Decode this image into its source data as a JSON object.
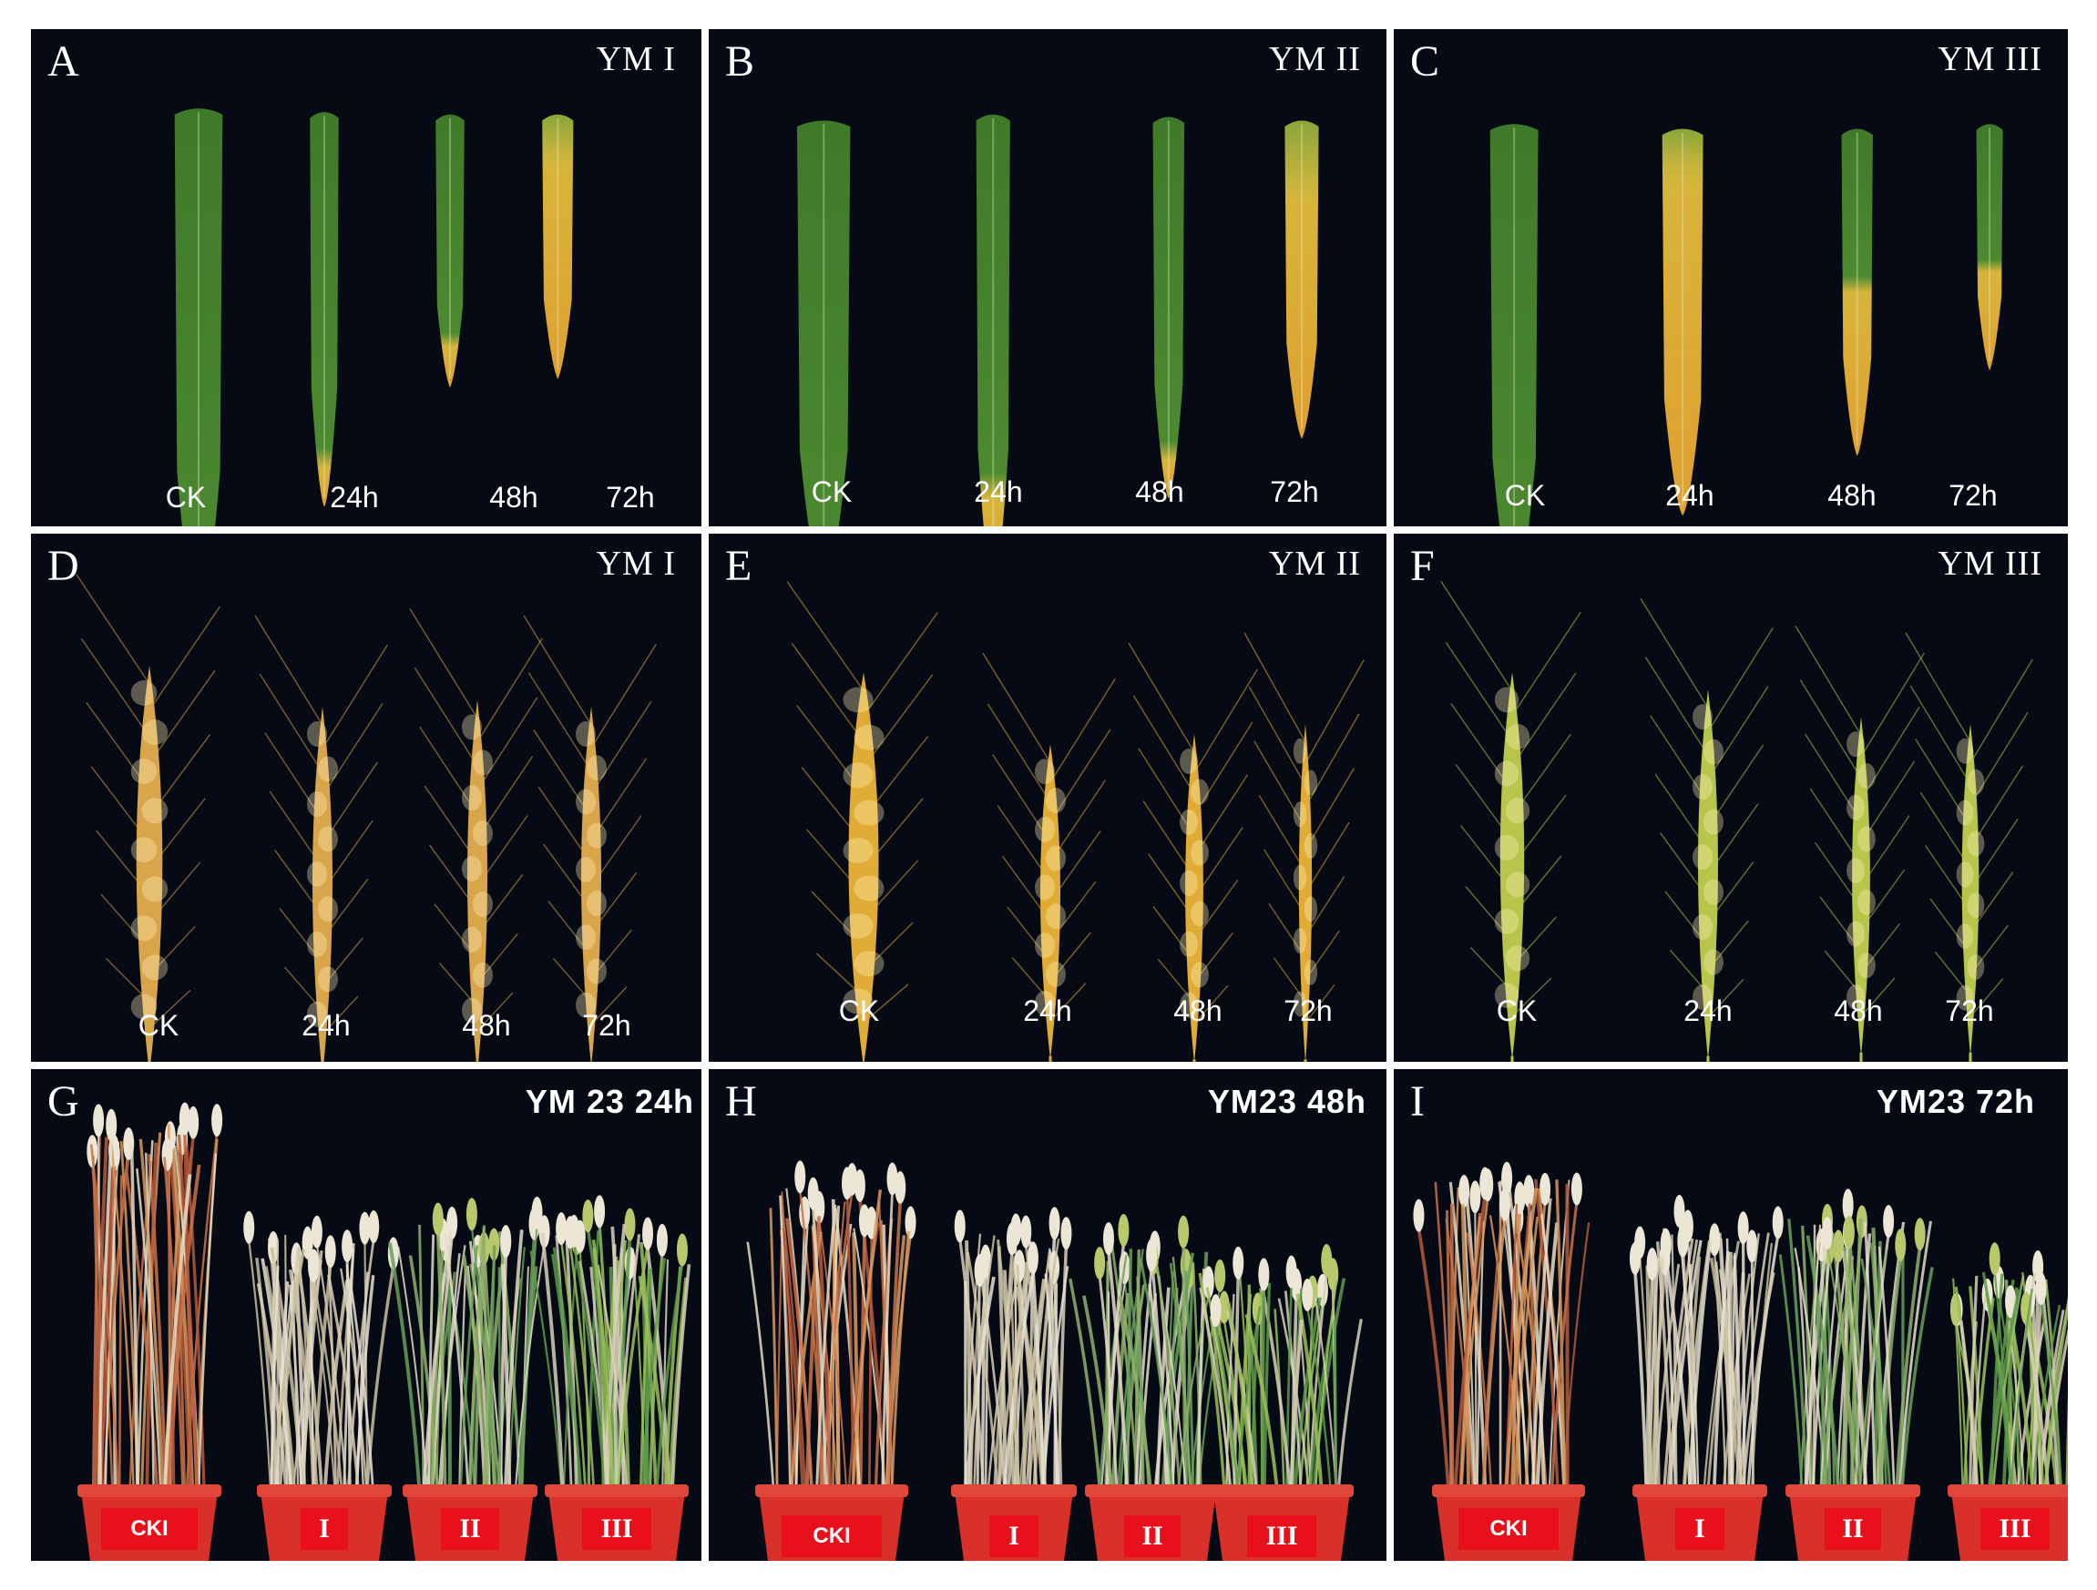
{
  "rows": [
    {
      "kind": "leaf",
      "panels": [
        {
          "letter": "A",
          "tag": "YM I",
          "labels": [
            "CK",
            "24h",
            "48h",
            "72h"
          ],
          "yellowing": [
            0.0,
            0.1,
            0.15,
            0.8
          ]
        },
        {
          "letter": "B",
          "tag": "YM  II",
          "labels": [
            "CK",
            "24h",
            "48h",
            "72h"
          ],
          "yellowing": [
            0.0,
            0.2,
            0.1,
            0.75
          ]
        },
        {
          "letter": "C",
          "tag": "YM  III",
          "labels": [
            "CK",
            "24h",
            "48h",
            "72h"
          ],
          "yellowing": [
            0.0,
            0.85,
            0.5,
            0.4
          ]
        }
      ]
    },
    {
      "kind": "spike",
      "panels": [
        {
          "letter": "D",
          "tag": "YM I",
          "labels": [
            "CK",
            "24h",
            "48h",
            "72h"
          ],
          "spike_color": "#d9a54a"
        },
        {
          "letter": "E",
          "tag": "YM  II",
          "labels": [
            "CK",
            "24h",
            "48h",
            "72h"
          ],
          "spike_color": "#e0ac35"
        },
        {
          "letter": "F",
          "tag": "YM  III",
          "labels": [
            "CK",
            "24h",
            "48h",
            "72h"
          ],
          "spike_color": "#b7c64a"
        }
      ]
    },
    {
      "kind": "plant",
      "panels": [
        {
          "letter": "G",
          "tag": "YM 23  24h",
          "pots": [
            "CKI",
            "I",
            "II",
            "III"
          ]
        },
        {
          "letter": "H",
          "tag": "YM23 48h",
          "pots": [
            "CKI",
            "I",
            "II",
            "III"
          ]
        },
        {
          "letter": "I",
          "tag": "YM23 72h",
          "pots": [
            "CKI",
            "I",
            "II",
            "III"
          ]
        }
      ]
    }
  ],
  "colors": {
    "background": "#050a14",
    "leaf_green": "#3f7a2a",
    "leaf_yellow": "#d7b43a",
    "pot_red": "#d9302a",
    "label_red": "#e8111b"
  }
}
